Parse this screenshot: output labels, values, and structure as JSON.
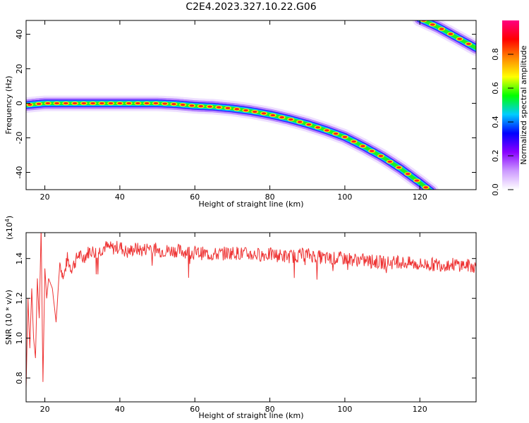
{
  "figure_title": "C2E4.2023.327.10.22.G06",
  "chart_data": [
    {
      "type": "heatmap",
      "xlabel": "Height of straight line (km)",
      "ylabel": "Frequency (Hz)",
      "xlim": [
        15,
        135
      ],
      "ylim": [
        -50,
        48
      ],
      "x_ticks": [
        "20",
        "40",
        "60",
        "80",
        "100",
        "120"
      ],
      "y_ticks": [
        "-40",
        "-20",
        "0",
        "20",
        "40"
      ],
      "colorbar": {
        "label": "Normalized spectral amplitude",
        "range": [
          0,
          1
        ],
        "ticks": [
          "0.0",
          "0.2",
          "0.4",
          "0.6",
          "0.8"
        ],
        "colors": [
          "#ffffff",
          "#cc99ff",
          "#8800ff",
          "#0000ff",
          "#00ccff",
          "#00ff00",
          "#ffff00",
          "#ff8800",
          "#ff0000",
          "#ff0080"
        ]
      },
      "ridges": [
        {
          "name": "",
          "points": [
            [
              15,
              -1
            ],
            [
              20,
              0
            ],
            [
              30,
              0
            ],
            [
              40,
              0
            ],
            [
              50,
              0
            ],
            [
              55,
              -0.5
            ],
            [
              60,
              -1.5
            ],
            [
              65,
              -2
            ],
            [
              70,
              -3
            ],
            [
              75,
              -4.5
            ],
            [
              80,
              -6.5
            ],
            [
              85,
              -9
            ],
            [
              90,
              -12
            ],
            [
              95,
              -15.5
            ],
            [
              100,
              -19.5
            ],
            [
              105,
              -25
            ],
            [
              110,
              -31
            ],
            [
              115,
              -38
            ],
            [
              120,
              -46
            ],
            [
              123,
              -51
            ]
          ]
        },
        {
          "name": "",
          "points": [
            [
              120,
              49
            ],
            [
              125,
              44
            ],
            [
              130,
              38
            ],
            [
              135,
              32
            ]
          ]
        }
      ]
    },
    {
      "type": "line",
      "xlabel": "Height of straight line (km)",
      "ylabel": "SNR (10 * v/v)",
      "multiplier": "(x10",
      "multiplier_exp": "4",
      "multiplier_close": ")",
      "xlim": [
        15,
        135
      ],
      "ylim": [
        0.68,
        1.53
      ],
      "x_ticks": [
        "20",
        "40",
        "60",
        "80",
        "100",
        "120"
      ],
      "y_ticks": [
        "0.8",
        "1.0",
        "1.2",
        "1.4"
      ],
      "color": "#ee3333",
      "series": [
        {
          "name": "",
          "x": [
            15,
            15.5,
            16,
            16.5,
            17,
            17.5,
            18,
            18.5,
            19,
            19.5,
            20,
            20.5,
            21,
            22,
            23,
            24,
            25,
            26,
            27,
            28,
            29,
            30,
            32,
            34,
            36,
            38,
            40,
            42,
            44,
            46,
            48,
            50,
            55,
            60,
            65,
            70,
            75,
            80,
            85,
            90,
            95,
            100,
            105,
            110,
            115,
            120,
            125,
            130,
            135
          ],
          "y": [
            0.75,
            1.2,
            0.95,
            1.25,
            1.0,
            0.9,
            1.3,
            1.1,
            1.55,
            0.78,
            1.35,
            1.2,
            1.3,
            1.25,
            1.08,
            1.38,
            1.3,
            1.4,
            1.35,
            1.38,
            1.42,
            1.4,
            1.44,
            1.43,
            1.46,
            1.45,
            1.46,
            1.43,
            1.45,
            1.44,
            1.46,
            1.44,
            1.44,
            1.43,
            1.42,
            1.43,
            1.42,
            1.42,
            1.41,
            1.42,
            1.4,
            1.4,
            1.39,
            1.38,
            1.38,
            1.37,
            1.37,
            1.37,
            1.36
          ]
        }
      ]
    }
  ]
}
